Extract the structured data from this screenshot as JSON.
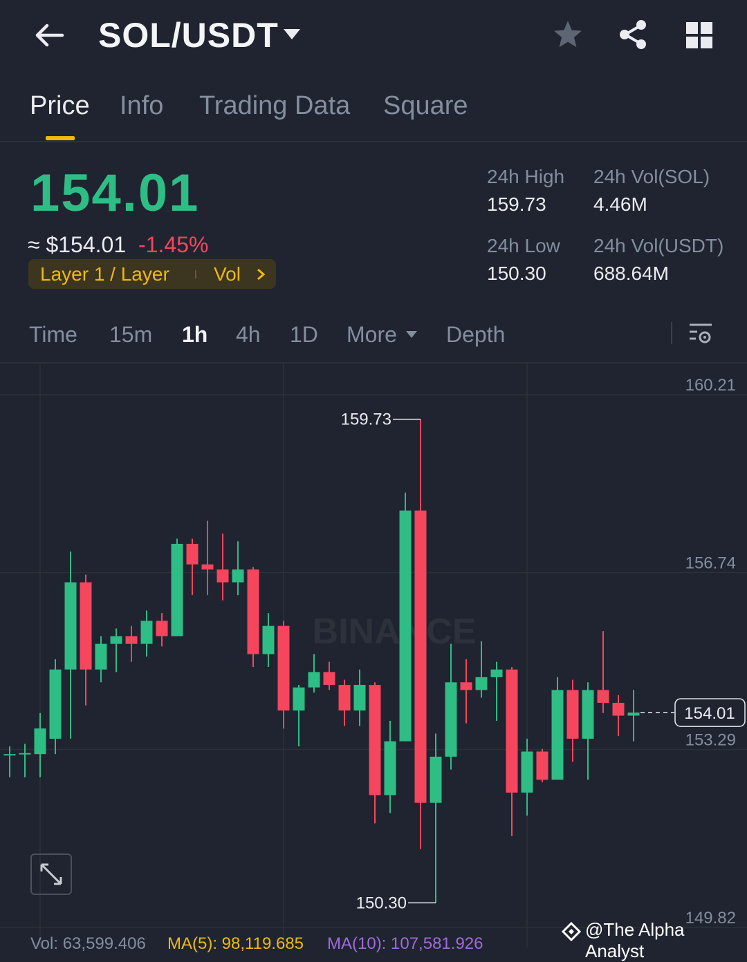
{
  "header": {
    "pair": "SOL/USDT"
  },
  "tabs": [
    "Price",
    "Info",
    "Trading Data",
    "Square"
  ],
  "price": {
    "last": "154.01",
    "approx": "≈ $154.01",
    "change": "-1.45%",
    "tag": "Layer 1 / Layer",
    "tag_vol": "Vol"
  },
  "stats": {
    "high_label": "24h High",
    "high_value": "159.73",
    "low_label": "24h Low",
    "low_value": "150.30",
    "vol_sol_label": "24h Vol(SOL)",
    "vol_sol_value": "4.46M",
    "vol_usdt_label": "24h Vol(USDT)",
    "vol_usdt_value": "688.64M"
  },
  "intervals": [
    "Time",
    "15m",
    "1h",
    "4h",
    "1D",
    "More",
    "Depth"
  ],
  "active_interval": "1h",
  "colors": {
    "up": "#2ebd85",
    "down": "#f6465d",
    "accent": "#f0b90b"
  },
  "chart_data": {
    "type": "candlestick",
    "y_ticks": [
      "160.21",
      "156.74",
      "153.29",
      "149.82"
    ],
    "high_label": "159.73",
    "low_label": "150.30",
    "last_price_label": "154.01",
    "watermark": "BINANCE",
    "candles": [
      {
        "o": 153.2,
        "c": 153.2,
        "h": 153.35,
        "l": 152.75
      },
      {
        "o": 153.2,
        "c": 153.22,
        "h": 153.4,
        "l": 152.75
      },
      {
        "o": 153.2,
        "c": 153.7,
        "h": 154.0,
        "l": 152.75
      },
      {
        "o": 153.5,
        "c": 154.85,
        "h": 155.05,
        "l": 153.2
      },
      {
        "o": 154.85,
        "c": 156.55,
        "h": 157.15,
        "l": 153.5
      },
      {
        "o": 156.55,
        "c": 154.85,
        "h": 156.7,
        "l": 154.15
      },
      {
        "o": 154.85,
        "c": 155.35,
        "h": 155.5,
        "l": 154.6
      },
      {
        "o": 155.35,
        "c": 155.5,
        "h": 155.65,
        "l": 154.8
      },
      {
        "o": 155.5,
        "c": 155.35,
        "h": 155.7,
        "l": 155.0
      },
      {
        "o": 155.35,
        "c": 155.8,
        "h": 156.0,
        "l": 155.1
      },
      {
        "o": 155.8,
        "c": 155.5,
        "h": 155.95,
        "l": 155.3
      },
      {
        "o": 155.5,
        "c": 157.3,
        "h": 157.4,
        "l": 155.5
      },
      {
        "o": 157.3,
        "c": 156.9,
        "h": 157.4,
        "l": 156.3
      },
      {
        "o": 156.9,
        "c": 156.8,
        "h": 157.75,
        "l": 156.3
      },
      {
        "o": 156.8,
        "c": 156.55,
        "h": 157.5,
        "l": 156.2
      },
      {
        "o": 156.55,
        "c": 156.8,
        "h": 157.35,
        "l": 156.3
      },
      {
        "o": 156.8,
        "c": 155.15,
        "h": 156.85,
        "l": 154.9
      },
      {
        "o": 155.15,
        "c": 155.7,
        "h": 155.95,
        "l": 154.9
      },
      {
        "o": 155.7,
        "c": 154.05,
        "h": 155.8,
        "l": 153.7
      },
      {
        "o": 154.05,
        "c": 154.5,
        "h": 154.55,
        "l": 153.35
      },
      {
        "o": 154.5,
        "c": 154.8,
        "h": 155.15,
        "l": 154.4
      },
      {
        "o": 154.8,
        "c": 154.55,
        "h": 155.0,
        "l": 154.45
      },
      {
        "o": 154.55,
        "c": 154.05,
        "h": 154.65,
        "l": 153.75
      },
      {
        "o": 154.05,
        "c": 154.55,
        "h": 154.85,
        "l": 153.75
      },
      {
        "o": 154.55,
        "c": 152.4,
        "h": 154.6,
        "l": 151.85
      },
      {
        "o": 152.4,
        "c": 153.45,
        "h": 153.85,
        "l": 152.05
      },
      {
        "o": 153.45,
        "c": 157.95,
        "h": 158.3,
        "l": 153.45
      },
      {
        "o": 157.95,
        "c": 152.25,
        "h": 159.73,
        "l": 151.35
      },
      {
        "o": 152.25,
        "c": 153.15,
        "h": 153.6,
        "l": 150.3
      },
      {
        "o": 153.15,
        "c": 154.6,
        "h": 155.35,
        "l": 152.9
      },
      {
        "o": 154.6,
        "c": 154.45,
        "h": 155.05,
        "l": 153.8
      },
      {
        "o": 154.45,
        "c": 154.7,
        "h": 155.4,
        "l": 154.3
      },
      {
        "o": 154.7,
        "c": 154.85,
        "h": 155.0,
        "l": 153.85
      },
      {
        "o": 154.85,
        "c": 152.45,
        "h": 154.9,
        "l": 151.6
      },
      {
        "o": 152.45,
        "c": 153.25,
        "h": 153.5,
        "l": 152.0
      },
      {
        "o": 153.25,
        "c": 152.7,
        "h": 153.3,
        "l": 152.65
      },
      {
        "o": 152.7,
        "c": 154.45,
        "h": 154.7,
        "l": 152.7
      },
      {
        "o": 154.45,
        "c": 153.5,
        "h": 154.65,
        "l": 153.05
      },
      {
        "o": 153.5,
        "c": 154.45,
        "h": 154.6,
        "l": 152.7
      },
      {
        "o": 154.45,
        "c": 154.2,
        "h": 155.6,
        "l": 154.0
      },
      {
        "o": 154.2,
        "c": 153.95,
        "h": 154.35,
        "l": 153.55
      },
      {
        "o": 153.95,
        "c": 154.01,
        "h": 154.45,
        "l": 153.45
      }
    ]
  },
  "volume_bar": {
    "vol": "Vol: 63,599.406",
    "ma5": "MA(5): 98,119.685",
    "ma10": "MA(10): 107,581.926"
  },
  "watermark": "@The Alpha Analyst"
}
